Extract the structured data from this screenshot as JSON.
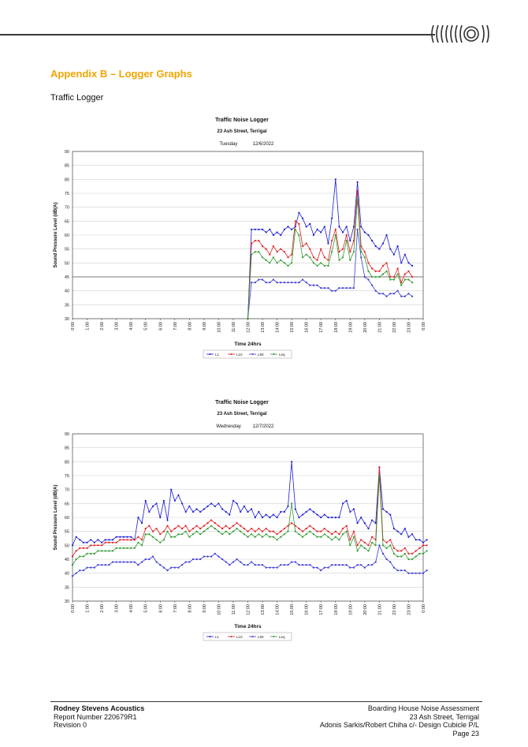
{
  "page": {
    "appendix_title": "Appendix B – Logger Graphs",
    "section_label": "Traffic Logger",
    "logo_icon": "sound-wave-logo-icon",
    "accent_color": "#f0a500"
  },
  "footer": {
    "org": "Rodney Stevens Acoustics",
    "report_number": "Report Number 220679R1",
    "revision": "Revision 0",
    "doc_title": "Boarding House Noise Assessment",
    "address": "23 Ash Street, Terrigal",
    "client": "Adonis Sarkis/Robert Chiha c/- Design Cubicle P/L",
    "page": "Page 23"
  },
  "chart_data": [
    {
      "type": "line",
      "title": "Traffic Noise Logger",
      "subtitle": "23 Ash Street, Terrigal",
      "day": "Tuesday",
      "date": "12/6/2022",
      "xlabel": "Time 24hrs",
      "ylabel": "Sound Pressure Level (dB(A)",
      "ylim": [
        30,
        90
      ],
      "yticks": [
        30,
        35,
        40,
        45,
        50,
        55,
        60,
        65,
        70,
        75,
        80,
        85,
        90
      ],
      "xticks": [
        "0:00",
        "1:00",
        "2:00",
        "3:00",
        "4:00",
        "5:00",
        "6:00",
        "7:00",
        "8:00",
        "9:00",
        "10:00",
        "11:00",
        "12:00",
        "13:00",
        "14:00",
        "15:00",
        "16:00",
        "17:00",
        "18:00",
        "19:00",
        "20:00",
        "21:00",
        "22:00",
        "23:00",
        "0:00"
      ],
      "x_start": 12.0,
      "x_step": 0.25,
      "reference_line": 45,
      "legend_position": "bottom",
      "grid": true,
      "series": [
        {
          "name": "L1",
          "color": "#1c1cd4",
          "values": [
            30,
            62,
            62,
            62,
            62,
            61,
            62,
            60,
            61,
            60,
            62,
            63,
            62,
            63,
            68,
            66,
            63,
            64,
            60,
            62,
            61,
            63,
            57,
            66,
            80,
            63,
            61,
            63,
            58,
            63,
            79,
            63,
            61,
            60,
            58,
            56,
            55,
            57,
            60,
            55,
            53,
            56,
            50,
            53,
            50,
            49
          ]
        },
        {
          "name": "L10",
          "color": "#e01e1e",
          "values": [
            30,
            57,
            58,
            58,
            56,
            55,
            53,
            56,
            54,
            55,
            54,
            52,
            53,
            65,
            64,
            56,
            57,
            55,
            52,
            51,
            55,
            52,
            51,
            58,
            62,
            54,
            55,
            60,
            54,
            58,
            76,
            56,
            54,
            50,
            48,
            47,
            47,
            49,
            50,
            45,
            45,
            48,
            43,
            46,
            47,
            45
          ]
        },
        {
          "name": "L90",
          "color": "#3b3bd6",
          "values": [
            30,
            43,
            43,
            44,
            44,
            43,
            43,
            44,
            43,
            43,
            43,
            43,
            43,
            43,
            43,
            44,
            43,
            42,
            42,
            42,
            41,
            41,
            41,
            40,
            40,
            41,
            41,
            41,
            41,
            41,
            62,
            52,
            45,
            44,
            42,
            40,
            39,
            39,
            38,
            39,
            39,
            40,
            38,
            38,
            39,
            38
          ]
        },
        {
          "name": "Leq",
          "color": "#2e9a2e",
          "values": [
            30,
            53,
            54,
            54,
            52,
            51,
            50,
            52,
            50,
            51,
            50,
            49,
            50,
            62,
            60,
            52,
            53,
            52,
            50,
            49,
            50,
            49,
            49,
            54,
            60,
            51,
            52,
            58,
            51,
            54,
            73,
            54,
            52,
            47,
            45,
            45,
            45,
            46,
            47,
            44,
            44,
            46,
            42,
            44,
            44,
            43
          ]
        }
      ]
    },
    {
      "type": "line",
      "title": "Traffic Noise Logger",
      "subtitle": "23 Ash Street, Terrigal",
      "day": "Wednesday",
      "date": "12/7/2022",
      "xlabel": "Time 24hrs",
      "ylabel": "Sound Pressure Level (dB(A)",
      "ylim": [
        30,
        90
      ],
      "yticks": [
        30,
        35,
        40,
        45,
        50,
        55,
        60,
        65,
        70,
        75,
        80,
        85,
        90
      ],
      "xticks": [
        "0:00",
        "1:00",
        "2:00",
        "3:00",
        "4:00",
        "5:00",
        "6:00",
        "7:00",
        "8:00",
        "9:00",
        "10:00",
        "11:00",
        "12:00",
        "13:00",
        "14:00",
        "15:00",
        "16:00",
        "17:00",
        "18:00",
        "19:00",
        "20:00",
        "21:00",
        "22:00",
        "23:00",
        "0:00"
      ],
      "x_start": 0.0,
      "x_step": 0.25,
      "reference_line": null,
      "legend_position": "bottom",
      "grid": true,
      "series": [
        {
          "name": "L1",
          "color": "#1c1cd4",
          "values": [
            50,
            53,
            52,
            51,
            51,
            52,
            51,
            52,
            51,
            52,
            52,
            52,
            53,
            53,
            53,
            53,
            53,
            52,
            60,
            58,
            66,
            62,
            64,
            65,
            60,
            66,
            59,
            70,
            66,
            68,
            65,
            62,
            64,
            62,
            63,
            62,
            63,
            64,
            65,
            64,
            65,
            63,
            62,
            61,
            66,
            65,
            62,
            64,
            62,
            63,
            60,
            62,
            60,
            61,
            60,
            61,
            60,
            62,
            62,
            64,
            80,
            63,
            60,
            61,
            62,
            63,
            62,
            61,
            60,
            61,
            60,
            60,
            60,
            60,
            65,
            66,
            62,
            63,
            58,
            60,
            58,
            56,
            59,
            58,
            78,
            63,
            62,
            61,
            56,
            55,
            54,
            56,
            53,
            54,
            52,
            52,
            51,
            52
          ]
        },
        {
          "name": "L10",
          "color": "#e01e1e",
          "values": [
            46,
            48,
            49,
            49,
            49,
            50,
            50,
            50,
            50,
            51,
            51,
            51,
            51,
            52,
            52,
            52,
            52,
            52,
            53,
            52,
            56,
            57,
            55,
            56,
            54,
            55,
            57,
            55,
            56,
            57,
            56,
            57,
            55,
            56,
            57,
            56,
            57,
            58,
            59,
            58,
            57,
            56,
            57,
            56,
            57,
            58,
            57,
            56,
            55,
            56,
            55,
            56,
            55,
            56,
            55,
            55,
            54,
            55,
            56,
            57,
            58,
            57,
            56,
            55,
            56,
            57,
            56,
            55,
            55,
            56,
            55,
            54,
            55,
            54,
            56,
            57,
            52,
            55,
            50,
            52,
            51,
            50,
            53,
            52,
            78,
            52,
            51,
            52,
            49,
            48,
            48,
            49,
            47,
            47,
            48,
            49,
            50,
            50
          ]
        },
        {
          "name": "L90",
          "color": "#3b3bd6",
          "values": [
            39,
            40,
            41,
            41,
            42,
            42,
            42,
            43,
            43,
            43,
            43,
            44,
            44,
            44,
            44,
            44,
            44,
            44,
            43,
            44,
            45,
            45,
            46,
            44,
            43,
            42,
            41,
            42,
            42,
            42,
            43,
            44,
            44,
            45,
            45,
            45,
            46,
            46,
            46,
            47,
            46,
            45,
            44,
            43,
            44,
            45,
            44,
            43,
            43,
            44,
            43,
            43,
            43,
            42,
            42,
            42,
            42,
            43,
            43,
            43,
            44,
            44,
            43,
            43,
            43,
            43,
            42,
            42,
            41,
            42,
            42,
            43,
            43,
            43,
            43,
            43,
            42,
            42,
            43,
            43,
            42,
            43,
            43,
            44,
            50,
            47,
            45,
            44,
            42,
            41,
            41,
            41,
            40,
            40,
            40,
            40,
            40,
            41
          ]
        },
        {
          "name": "Leq",
          "color": "#2e9a2e",
          "values": [
            43,
            45,
            46,
            46,
            47,
            47,
            47,
            48,
            48,
            48,
            48,
            48,
            49,
            49,
            49,
            49,
            49,
            49,
            51,
            50,
            54,
            54,
            53,
            52,
            51,
            52,
            55,
            53,
            53,
            54,
            54,
            55,
            53,
            54,
            55,
            54,
            55,
            56,
            57,
            56,
            55,
            54,
            55,
            54,
            55,
            56,
            55,
            54,
            53,
            54,
            53,
            54,
            53,
            54,
            53,
            53,
            52,
            53,
            54,
            55,
            65,
            55,
            54,
            53,
            54,
            55,
            54,
            53,
            53,
            54,
            53,
            52,
            53,
            52,
            54,
            55,
            50,
            53,
            48,
            50,
            49,
            48,
            51,
            50,
            75,
            50,
            49,
            50,
            47,
            46,
            46,
            47,
            45,
            45,
            46,
            47,
            47,
            48
          ]
        }
      ]
    }
  ]
}
